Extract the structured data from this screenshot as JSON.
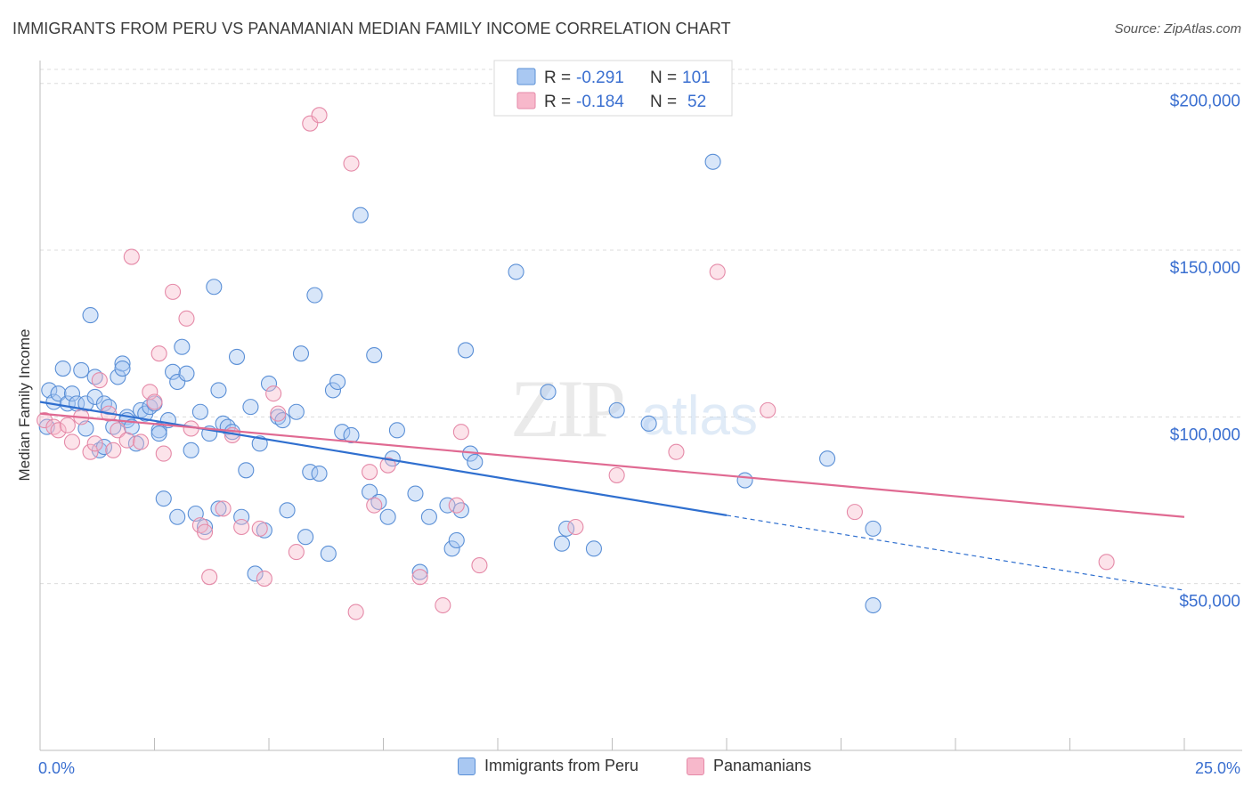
{
  "header": {
    "title": "IMMIGRANTS FROM PERU VS PANAMANIAN MEDIAN FAMILY INCOME CORRELATION CHART",
    "source": "Source: ZipAtlas.com"
  },
  "colors": {
    "blue_fill": "#a9c8f2",
    "blue_stroke": "#5a8fd6",
    "blue_line": "#2f6fcf",
    "pink_fill": "#f7b8cb",
    "pink_stroke": "#e58aa8",
    "pink_line": "#e06a92",
    "tick_label": "#3a6fd0",
    "grid": "#dcdcdc"
  },
  "chart_data": {
    "type": "scatter",
    "title": "IMMIGRANTS FROM PERU VS PANAMANIAN MEDIAN FAMILY INCOME CORRELATION CHART",
    "xlabel": "",
    "ylabel": "Median Family Income",
    "xlim": [
      0,
      25
    ],
    "ylim": [
      0,
      205000
    ],
    "x_tick_labels": [
      "0.0%",
      "25.0%"
    ],
    "y_ticks": [
      50000,
      100000,
      150000,
      200000
    ],
    "y_tick_labels": [
      "$50,000",
      "$100,000",
      "$150,000",
      "$200,000"
    ],
    "grid": true,
    "watermark": {
      "zip": "ZIP",
      "atlas": "atlas"
    },
    "legend_stats": [
      {
        "r_label": "R =",
        "r_value": "-0.291",
        "n_label": "N =",
        "n_value": "101"
      },
      {
        "r_label": "R =",
        "r_value": "-0.184",
        "n_label": "N =",
        "n_value": "52"
      }
    ],
    "series": [
      {
        "name": "Immigrants from Peru",
        "trend": {
          "x0": 0,
          "y0": 104500,
          "x1": 15,
          "y1": 70500,
          "x_dash_end": 25,
          "y_dash_end": 48000
        },
        "points": [
          [
            0.2,
            108000
          ],
          [
            0.3,
            104500
          ],
          [
            0.4,
            107000
          ],
          [
            0.5,
            114500
          ],
          [
            0.6,
            104000
          ],
          [
            0.7,
            107000
          ],
          [
            0.8,
            104000
          ],
          [
            0.9,
            114000
          ],
          [
            1.0,
            104000
          ],
          [
            1.0,
            96500
          ],
          [
            1.1,
            130500
          ],
          [
            1.2,
            106000
          ],
          [
            1.2,
            112000
          ],
          [
            1.3,
            90000
          ],
          [
            1.4,
            104000
          ],
          [
            1.4,
            91000
          ],
          [
            1.5,
            103000
          ],
          [
            1.6,
            97000
          ],
          [
            1.7,
            112000
          ],
          [
            1.8,
            116000
          ],
          [
            1.8,
            114500
          ],
          [
            1.9,
            100000
          ],
          [
            1.9,
            99000
          ],
          [
            2.0,
            97000
          ],
          [
            2.1,
            92000
          ],
          [
            2.2,
            102000
          ],
          [
            2.3,
            101000
          ],
          [
            2.4,
            103000
          ],
          [
            2.5,
            104000
          ],
          [
            2.6,
            96000
          ],
          [
            2.6,
            95000
          ],
          [
            2.7,
            75500
          ],
          [
            2.8,
            99000
          ],
          [
            2.9,
            113500
          ],
          [
            3.0,
            110500
          ],
          [
            3.0,
            70000
          ],
          [
            3.1,
            121000
          ],
          [
            3.2,
            113000
          ],
          [
            3.3,
            90000
          ],
          [
            3.4,
            71000
          ],
          [
            3.5,
            101500
          ],
          [
            3.6,
            67000
          ],
          [
            3.7,
            95000
          ],
          [
            3.8,
            139000
          ],
          [
            3.9,
            108000
          ],
          [
            3.9,
            72500
          ],
          [
            4.0,
            98000
          ],
          [
            4.1,
            97000
          ],
          [
            4.2,
            95500
          ],
          [
            4.3,
            118000
          ],
          [
            4.4,
            70000
          ],
          [
            4.5,
            84000
          ],
          [
            4.6,
            103000
          ],
          [
            4.7,
            53000
          ],
          [
            4.8,
            92000
          ],
          [
            4.9,
            66000
          ],
          [
            5.0,
            110000
          ],
          [
            5.2,
            100000
          ],
          [
            5.3,
            99000
          ],
          [
            5.4,
            72000
          ],
          [
            5.6,
            101500
          ],
          [
            5.7,
            119000
          ],
          [
            5.8,
            64000
          ],
          [
            5.9,
            83500
          ],
          [
            6.0,
            136500
          ],
          [
            6.1,
            83000
          ],
          [
            6.3,
            59000
          ],
          [
            6.4,
            108000
          ],
          [
            6.5,
            110500
          ],
          [
            6.6,
            95500
          ],
          [
            6.8,
            94500
          ],
          [
            7.0,
            160500
          ],
          [
            7.2,
            77500
          ],
          [
            7.3,
            118500
          ],
          [
            7.4,
            74500
          ],
          [
            7.6,
            70000
          ],
          [
            7.7,
            87500
          ],
          [
            7.8,
            96000
          ],
          [
            8.2,
            77000
          ],
          [
            8.3,
            53500
          ],
          [
            8.5,
            70000
          ],
          [
            8.9,
            73500
          ],
          [
            9.0,
            60500
          ],
          [
            9.1,
            63000
          ],
          [
            9.2,
            72000
          ],
          [
            9.3,
            120000
          ],
          [
            9.4,
            89000
          ],
          [
            9.5,
            86500
          ],
          [
            10.4,
            143500
          ],
          [
            11.1,
            107500
          ],
          [
            11.4,
            62000
          ],
          [
            11.5,
            66500
          ],
          [
            12.1,
            60500
          ],
          [
            12.6,
            102000
          ],
          [
            13.3,
            98000
          ],
          [
            14.7,
            176500
          ],
          [
            15.4,
            81000
          ],
          [
            17.2,
            87500
          ],
          [
            18.2,
            66500
          ],
          [
            18.2,
            43500
          ],
          [
            0.15,
            97000
          ]
        ]
      },
      {
        "name": "Panamanians",
        "trend": {
          "x0": 0,
          "y0": 101000,
          "x1": 25,
          "y1": 70000
        },
        "points": [
          [
            0.1,
            99000
          ],
          [
            0.3,
            97000
          ],
          [
            0.4,
            96000
          ],
          [
            0.6,
            97500
          ],
          [
            0.7,
            92500
          ],
          [
            0.9,
            100000
          ],
          [
            1.1,
            89500
          ],
          [
            1.2,
            92000
          ],
          [
            1.3,
            111000
          ],
          [
            1.5,
            101000
          ],
          [
            1.6,
            90000
          ],
          [
            1.7,
            96000
          ],
          [
            1.9,
            93000
          ],
          [
            2.0,
            148000
          ],
          [
            2.2,
            92500
          ],
          [
            2.4,
            107500
          ],
          [
            2.5,
            104500
          ],
          [
            2.6,
            119000
          ],
          [
            2.7,
            89000
          ],
          [
            2.9,
            137500
          ],
          [
            3.2,
            129500
          ],
          [
            3.3,
            96500
          ],
          [
            3.5,
            67500
          ],
          [
            3.6,
            65500
          ],
          [
            3.7,
            52000
          ],
          [
            4.0,
            72500
          ],
          [
            4.2,
            94500
          ],
          [
            4.4,
            67000
          ],
          [
            4.8,
            66500
          ],
          [
            4.9,
            51500
          ],
          [
            5.1,
            107000
          ],
          [
            5.2,
            101000
          ],
          [
            5.6,
            59500
          ],
          [
            5.9,
            188000
          ],
          [
            6.1,
            190500
          ],
          [
            6.8,
            176000
          ],
          [
            6.9,
            41500
          ],
          [
            7.2,
            83500
          ],
          [
            7.3,
            73500
          ],
          [
            7.6,
            85500
          ],
          [
            8.3,
            52000
          ],
          [
            8.8,
            43500
          ],
          [
            9.1,
            73500
          ],
          [
            9.2,
            95500
          ],
          [
            9.6,
            55500
          ],
          [
            11.7,
            67000
          ],
          [
            12.6,
            82500
          ],
          [
            13.9,
            89500
          ],
          [
            14.8,
            143500
          ],
          [
            15.9,
            102000
          ],
          [
            17.8,
            71500
          ],
          [
            23.3,
            56500
          ]
        ]
      }
    ]
  }
}
